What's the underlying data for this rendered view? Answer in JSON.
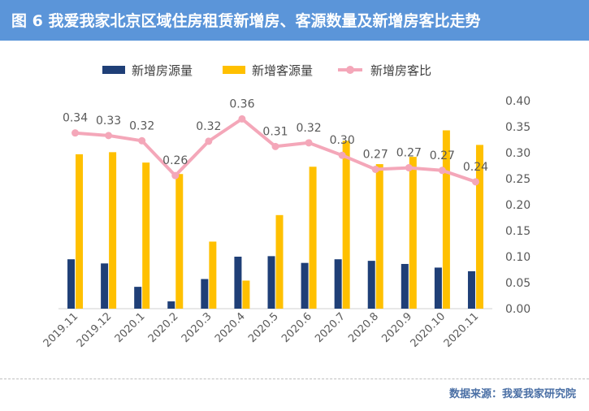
{
  "header": {
    "title": "图 6 我爱我家北京区域住房租赁新增房、客源数量及新增房客比走势"
  },
  "footer": {
    "source": "数据来源：我爱我家研究院"
  },
  "colors": {
    "header_bg": "#5b95d9",
    "bar_listings": "#1f3f77",
    "bar_customers": "#ffc000",
    "line_ratio": "#f4a7b9",
    "axis_text": "#595959",
    "source_text": "#4a6fa5"
  },
  "chart_data": {
    "type": "bar",
    "categories": [
      "2019.11",
      "2019.12",
      "2020.1",
      "2020.2",
      "2020.3",
      "2020.4",
      "2020.5",
      "2020.6",
      "2020.7",
      "2020.8",
      "2020.9",
      "2020.10",
      "2020.11"
    ],
    "series": [
      {
        "name": "新增房源量",
        "kind": "bar",
        "values": [
          0.095,
          0.087,
          0.042,
          0.014,
          0.057,
          0.1,
          0.101,
          0.088,
          0.095,
          0.092,
          0.086,
          0.079,
          0.072
        ]
      },
      {
        "name": "新增客源量",
        "kind": "bar",
        "values": [
          0.297,
          0.301,
          0.281,
          0.259,
          0.129,
          0.054,
          0.18,
          0.273,
          0.323,
          0.278,
          0.292,
          0.343,
          0.315
        ]
      },
      {
        "name": "新增房客比",
        "kind": "line",
        "values": [
          0.338,
          0.333,
          0.323,
          0.256,
          0.322,
          0.365,
          0.312,
          0.319,
          0.295,
          0.268,
          0.271,
          0.266,
          0.244
        ],
        "labels": [
          "0.34",
          "0.33",
          "0.32",
          "0.26",
          "0.32",
          "0.36",
          "0.31",
          "0.32",
          "0.30",
          "0.27",
          "0.27",
          "0.27",
          "0.24"
        ]
      }
    ],
    "y_axis": {
      "min": 0,
      "max": 0.4,
      "ticks": [
        "0.00",
        "0.05",
        "0.10",
        "0.15",
        "0.20",
        "0.25",
        "0.30",
        "0.35",
        "0.40"
      ],
      "side": "right"
    },
    "legend_position": "top-center",
    "grid": false
  }
}
